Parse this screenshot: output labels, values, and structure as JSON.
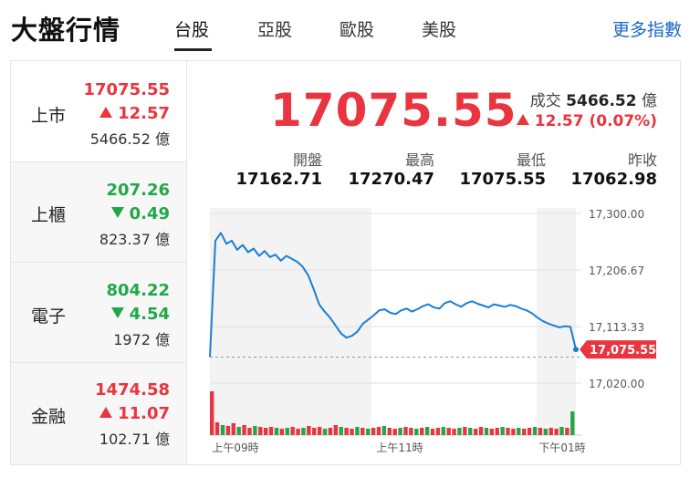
{
  "header": {
    "title": "大盤行情",
    "tabs": [
      "台股",
      "亞股",
      "歐股",
      "美股"
    ],
    "active_tab": "台股",
    "more_link": "更多指數"
  },
  "markets": [
    {
      "name": "上市",
      "value": "17075.55",
      "change": "12.57",
      "direction": "up",
      "volume": "5466.52 億"
    },
    {
      "name": "上櫃",
      "value": "207.26",
      "change": "0.49",
      "direction": "down",
      "volume": "823.37 億"
    },
    {
      "name": "電子",
      "value": "804.22",
      "change": "4.54",
      "direction": "down",
      "volume": "1972 億"
    },
    {
      "name": "金融",
      "value": "1474.58",
      "change": "11.07",
      "direction": "up",
      "volume": "102.71 億"
    }
  ],
  "detail": {
    "price": "17075.55",
    "volume_label": "成交",
    "volume_value": "5466.52",
    "volume_unit": "億",
    "change_text": "12.57 (0.07%)",
    "stats": [
      {
        "label": "開盤",
        "value": "17162.71"
      },
      {
        "label": "最高",
        "value": "17270.47"
      },
      {
        "label": "最低",
        "value": "17075.55"
      },
      {
        "label": "昨收",
        "value": "17062.98"
      }
    ]
  },
  "colors": {
    "up": "#e8353f",
    "down": "#20a848",
    "line": "#1a7fd4",
    "link": "#1a66c7"
  },
  "chart_data": {
    "type": "line",
    "y_ticks": [
      "17,300.00",
      "17,206.67",
      "17,113.33",
      "17,020.00"
    ],
    "ylim": [
      17020.0,
      17300.0
    ],
    "x_ticks": [
      "上午09時",
      "上午11時",
      "下午01時"
    ],
    "current_label": "17,075.55",
    "reference_close": 17062.98,
    "series": [
      {
        "values": [
          17062.98,
          17255,
          17268,
          17250,
          17255,
          17240,
          17248,
          17236,
          17242,
          17230,
          17238,
          17228,
          17232,
          17222,
          17230,
          17225,
          17220,
          17212,
          17198,
          17175,
          17150,
          17138,
          17128,
          17115,
          17102,
          17095,
          17098,
          17105,
          17118,
          17125,
          17132,
          17140,
          17142,
          17136,
          17134,
          17140,
          17143,
          17138,
          17142,
          17147,
          17150,
          17145,
          17143,
          17152,
          17155,
          17150,
          17146,
          17152,
          17155,
          17151,
          17148,
          17145,
          17150,
          17148,
          17146,
          17149,
          17147,
          17143,
          17140,
          17135,
          17128,
          17122,
          17118,
          17115,
          17112,
          17114,
          17113,
          17075.55
        ]
      }
    ],
    "volume_bars": [
      48,
      14,
      11,
      10,
      13,
      9,
      11,
      8,
      10,
      9,
      8,
      9,
      8,
      7,
      8,
      9,
      7,
      8,
      10,
      8,
      9,
      7,
      8,
      11,
      9,
      8,
      7,
      9,
      8,
      7,
      8,
      9,
      10,
      8,
      7,
      8,
      9,
      8,
      7,
      8,
      9,
      7,
      8,
      9,
      8,
      7,
      8,
      9,
      8,
      7,
      9,
      8,
      7,
      8,
      9,
      8,
      7,
      8,
      7,
      8,
      9,
      8,
      7,
      8,
      7,
      9,
      8,
      26
    ],
    "volume_colors": [
      "r",
      "r",
      "g",
      "r",
      "r",
      "g",
      "r",
      "r",
      "g",
      "r",
      "r",
      "r",
      "g",
      "r",
      "g",
      "r",
      "r",
      "g",
      "r",
      "r",
      "r",
      "g",
      "r",
      "r",
      "g",
      "r",
      "r",
      "g",
      "r",
      "g",
      "r",
      "r",
      "g",
      "r",
      "r",
      "g",
      "r",
      "r",
      "g",
      "r",
      "g",
      "r",
      "r",
      "g",
      "r",
      "r",
      "g",
      "r",
      "g",
      "r",
      "r",
      "g",
      "r",
      "r",
      "g",
      "r",
      "r",
      "g",
      "r",
      "r",
      "g",
      "r",
      "g",
      "r",
      "r",
      "g",
      "r",
      "g"
    ]
  }
}
